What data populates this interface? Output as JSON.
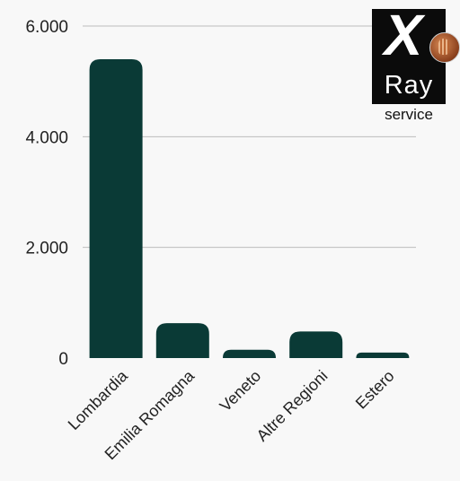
{
  "chart_data": {
    "type": "bar",
    "categories": [
      "Lombardia",
      "Emilia Romagna",
      "Veneto",
      "Altre Regioni",
      "Estero"
    ],
    "values": [
      5400,
      630,
      150,
      480,
      100
    ],
    "ylim": [
      0,
      6000
    ],
    "yticks": [
      0,
      2000,
      4000,
      6000
    ],
    "ytick_labels": [
      "0",
      "2.000",
      "4.000",
      "6.000"
    ],
    "grid": true,
    "bar_color": "#0a3a36"
  },
  "logo": {
    "mark": "X",
    "word": "Ray",
    "subword": "service",
    "icon": "hand-icon"
  }
}
